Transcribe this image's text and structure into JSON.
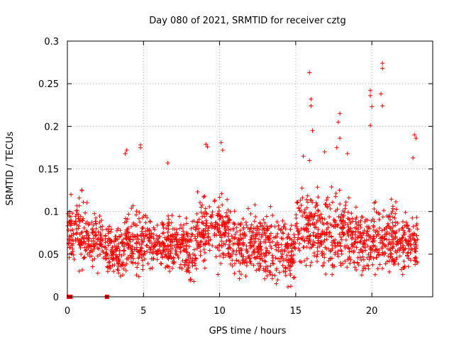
{
  "chart_data": {
    "type": "scatter",
    "title": "Day 080 of 2021, SRMTID for receiver cztg",
    "xlabel": "GPS time / hours",
    "ylabel": "SRMTID / TECUs",
    "xlim": [
      0,
      24
    ],
    "ylim": [
      0,
      0.3
    ],
    "xticks": [
      0,
      5,
      10,
      15,
      20
    ],
    "yticks": [
      0,
      0.05,
      0.1,
      0.15,
      0.2,
      0.25,
      0.3
    ],
    "xtick_labels": [
      "0",
      "5",
      "10",
      "15",
      "20"
    ],
    "ytick_labels": [
      "0",
      "0.05",
      "0.1",
      "0.15",
      "0.2",
      "0.25",
      "0.3"
    ],
    "grid": true,
    "legend": "none",
    "marker": "plus",
    "color": "#ff0000",
    "zero_points": [
      [
        0.1,
        0
      ],
      [
        0.2,
        0
      ],
      [
        2.6,
        0
      ]
    ],
    "peak_points": [
      [
        15.9,
        0.263
      ],
      [
        16.0,
        0.232
      ],
      [
        16.0,
        0.224
      ],
      [
        16.1,
        0.195
      ],
      [
        17.9,
        0.215
      ],
      [
        17.8,
        0.205
      ],
      [
        17.9,
        0.186
      ],
      [
        17.7,
        0.175
      ],
      [
        19.9,
        0.242
      ],
      [
        19.9,
        0.236
      ],
      [
        20.0,
        0.223
      ],
      [
        19.9,
        0.201
      ],
      [
        20.7,
        0.274
      ],
      [
        20.7,
        0.268
      ],
      [
        20.6,
        0.238
      ],
      [
        20.7,
        0.224
      ],
      [
        4.8,
        0.178
      ],
      [
        4.8,
        0.175
      ],
      [
        3.9,
        0.172
      ],
      [
        3.8,
        0.168
      ],
      [
        9.1,
        0.179
      ],
      [
        9.2,
        0.176
      ],
      [
        10.1,
        0.181
      ],
      [
        10.2,
        0.172
      ],
      [
        22.8,
        0.19
      ],
      [
        22.9,
        0.186
      ],
      [
        22.7,
        0.163
      ],
      [
        6.6,
        0.157
      ],
      [
        16.9,
        0.17
      ],
      [
        18.4,
        0.168
      ],
      [
        15.5,
        0.165
      ],
      [
        15.9,
        0.16
      ]
    ],
    "series": [
      {
        "segments": [
          {
            "x_from": 0.0,
            "x_to": 1.3,
            "y_low": 0.03,
            "y_high": 0.14
          },
          {
            "x_from": 1.3,
            "x_to": 2.3,
            "y_low": 0.03,
            "y_high": 0.12
          },
          {
            "x_from": 2.3,
            "x_to": 3.7,
            "y_low": 0.02,
            "y_high": 0.1
          },
          {
            "x_from": 3.7,
            "x_to": 5.2,
            "y_low": 0.02,
            "y_high": 0.13
          },
          {
            "x_from": 5.2,
            "x_to": 6.7,
            "y_low": 0.03,
            "y_high": 0.11
          },
          {
            "x_from": 6.7,
            "x_to": 7.7,
            "y_low": 0.03,
            "y_high": 0.11
          },
          {
            "x_from": 7.7,
            "x_to": 8.5,
            "y_low": 0.01,
            "y_high": 0.12
          },
          {
            "x_from": 8.5,
            "x_to": 9.5,
            "y_low": 0.03,
            "y_high": 0.14
          },
          {
            "x_from": 9.5,
            "x_to": 10.6,
            "y_low": 0.03,
            "y_high": 0.14
          },
          {
            "x_from": 10.6,
            "x_to": 12.6,
            "y_low": 0.02,
            "y_high": 0.12
          },
          {
            "x_from": 12.6,
            "x_to": 15.0,
            "y_low": 0.01,
            "y_high": 0.12
          },
          {
            "x_from": 15.0,
            "x_to": 16.6,
            "y_low": 0.03,
            "y_high": 0.15
          },
          {
            "x_from": 16.6,
            "x_to": 18.6,
            "y_low": 0.02,
            "y_high": 0.15
          },
          {
            "x_from": 18.6,
            "x_to": 20.2,
            "y_low": 0.02,
            "y_high": 0.13
          },
          {
            "x_from": 20.2,
            "x_to": 21.8,
            "y_low": 0.02,
            "y_high": 0.14
          },
          {
            "x_from": 21.8,
            "x_to": 23.0,
            "y_low": 0.02,
            "y_high": 0.12
          }
        ],
        "points_per_hour": 90
      }
    ]
  }
}
